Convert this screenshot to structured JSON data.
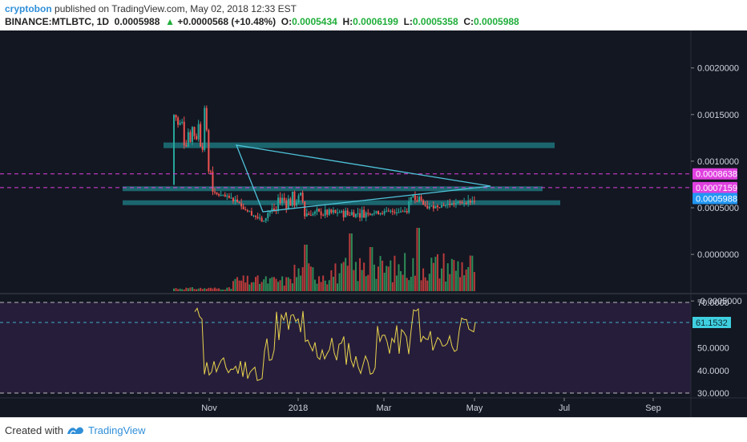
{
  "header": {
    "author": "cryptobon",
    "published_text": "published on TradingView.com, May 02, 2018 12:33 EST",
    "symbol": "BINANCE:MTLBTC, 1D",
    "last_price": "0.0005988",
    "change": "+0.0000568 (+10.48%)",
    "o_label": "O:",
    "o_value": "0.0005434",
    "h_label": "H:",
    "h_value": "0.0006199",
    "l_label": "L:",
    "l_value": "0.0005358",
    "c_label": "C:",
    "c_value": "0.0005988"
  },
  "footer": {
    "created_with": "Created with",
    "brand": "TradingView"
  },
  "colors": {
    "background": "#131722",
    "up": "#26a69a",
    "down": "#ef5350",
    "zone": "#1e7a82",
    "triangle": "#4fc3d9",
    "rsi_line": "#e8d44d",
    "magenta": "#e040e0",
    "price_tag": "#2196f3"
  },
  "chart_data": {
    "type": "candlestick",
    "price_axis": {
      "ticks": [
        "0.0020000",
        "0.0015000",
        "0.0010000",
        "0.0005000",
        "0.0000000",
        "-0.0005000"
      ],
      "range": [
        -0.00055,
        0.0021
      ]
    },
    "x_axis": {
      "ticks": [
        "Nov",
        "2018",
        "Mar",
        "May",
        "Jul",
        "Sep"
      ]
    },
    "price_labels": [
      {
        "value": "0.0008638",
        "kind": "magenta"
      },
      {
        "value": "0.0007159",
        "kind": "magenta"
      },
      {
        "value": "0.0005988",
        "kind": "current"
      }
    ],
    "zones": [
      {
        "from": 0.00114,
        "to": 0.0012
      },
      {
        "from": 0.00069,
        "to": 0.00073
      },
      {
        "from": 0.00053,
        "to": 0.00058
      }
    ],
    "triangle": [
      [
        0,
        0.00098
      ],
      [
        0,
        0.00026
      ],
      [
        0,
        0.00052
      ]
    ],
    "rsi": {
      "ticks": [
        "70.0000",
        "50.0000",
        "40.0000",
        "30.0000"
      ],
      "current": "61.1532",
      "range": [
        27,
        73
      ]
    }
  }
}
